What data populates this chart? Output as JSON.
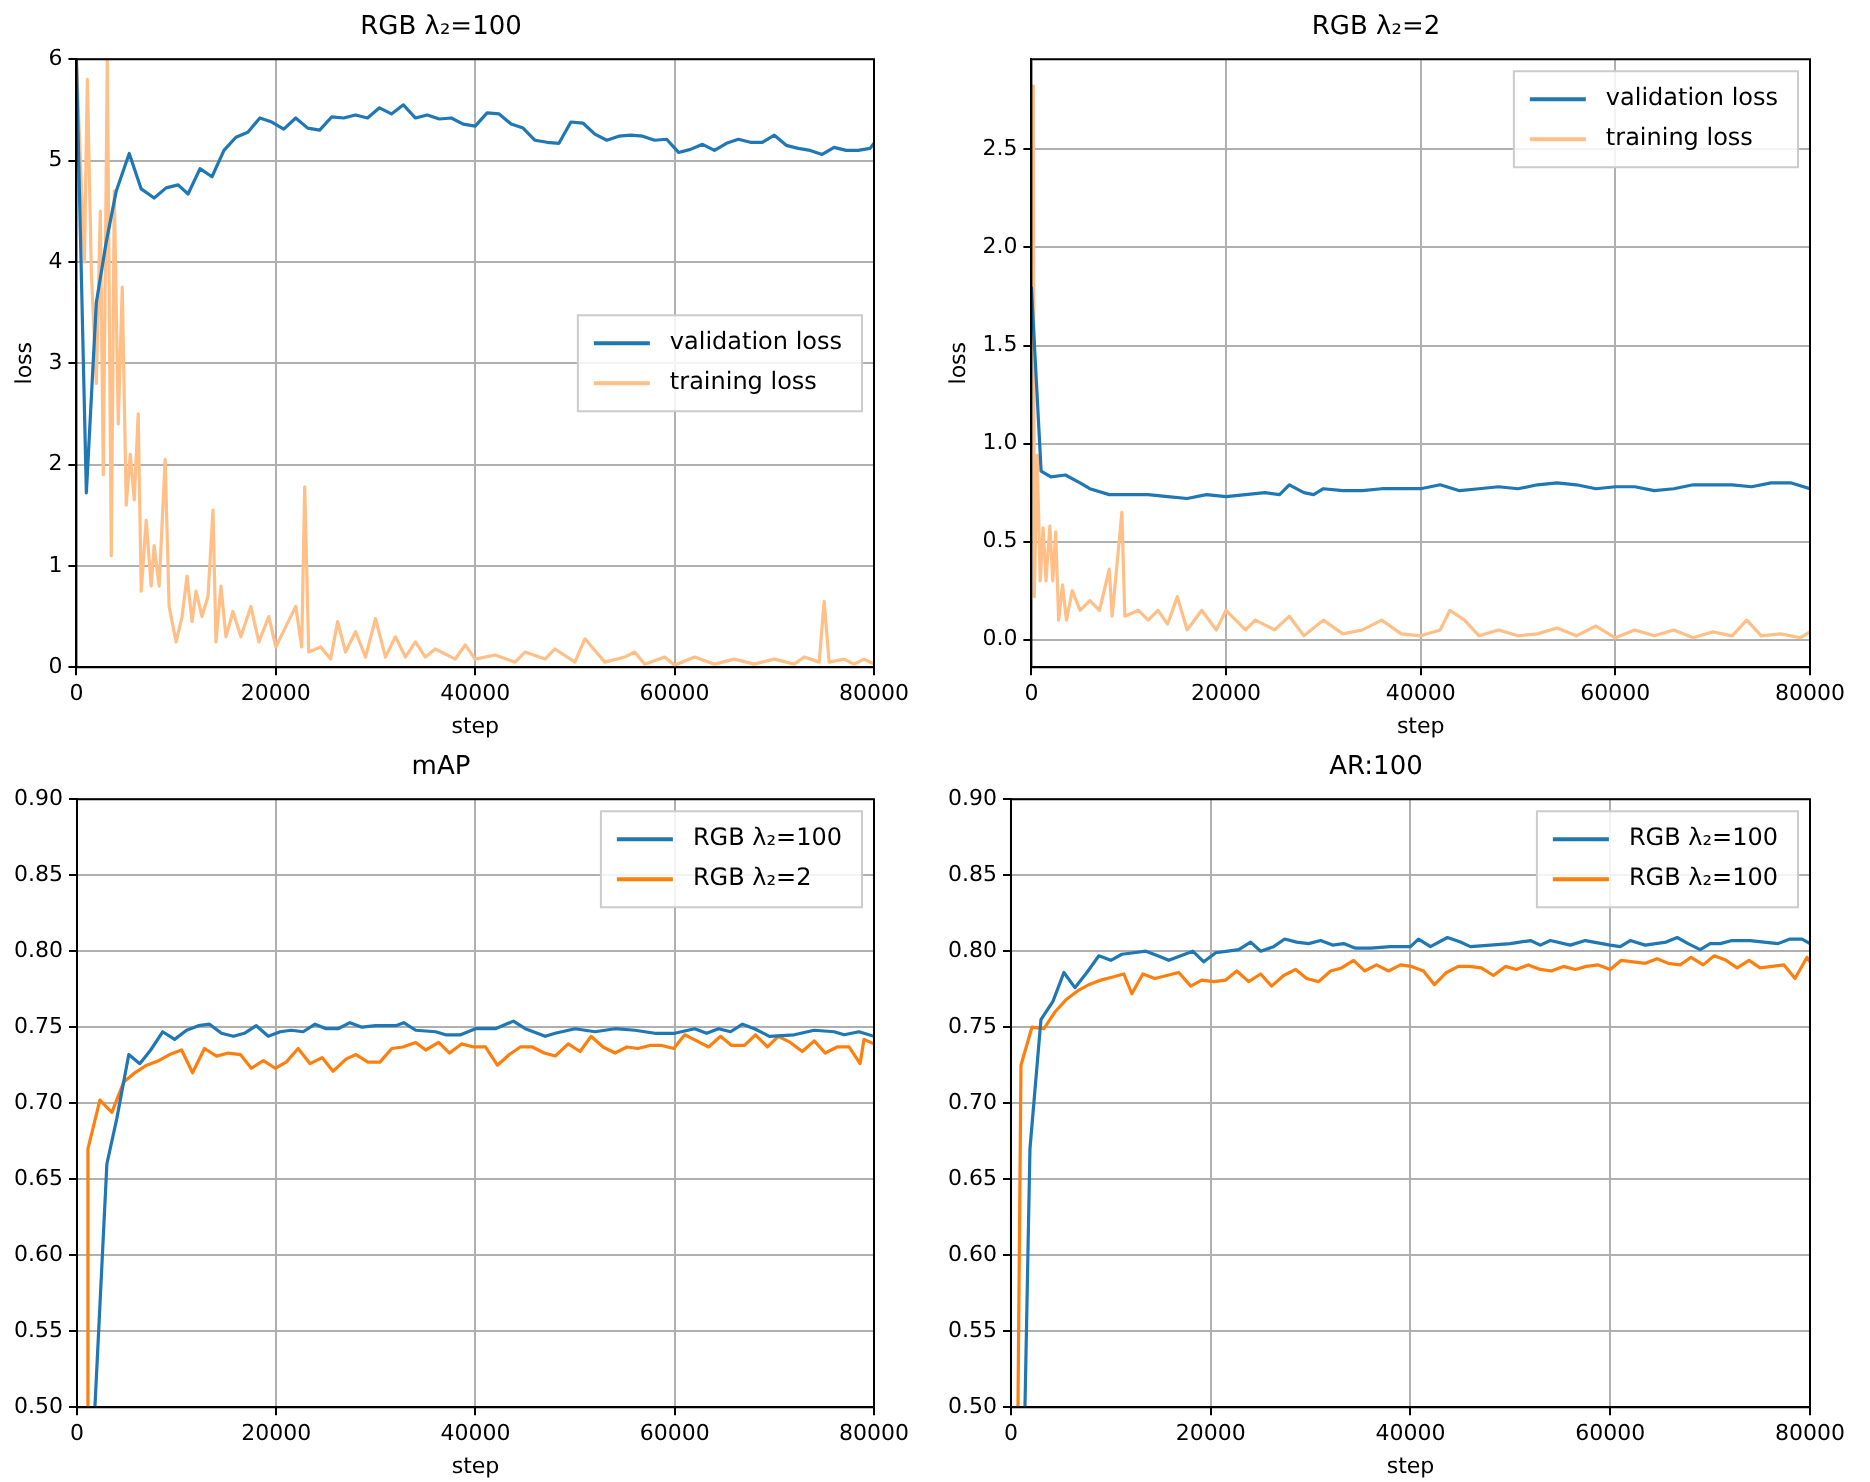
{
  "chart_data": [
    {
      "type": "line",
      "title": "RGB λ₂=100",
      "xlabel": "step",
      "ylabel": "loss",
      "xlim": [
        0,
        80000
      ],
      "xticks": [
        0,
        20000,
        40000,
        60000,
        80000
      ],
      "ylim": [
        0,
        6
      ],
      "yticks": [
        0,
        1,
        2,
        3,
        4,
        5,
        6
      ],
      "grid": true,
      "legend": "right",
      "marker": "none",
      "series": [
        {
          "name": "validation loss",
          "color": "#1f77b4",
          "x": [
            0,
            1000,
            2000,
            3000,
            4000,
            5300,
            6500,
            7800,
            9000,
            10200,
            11200,
            12400,
            13600,
            14800,
            16000,
            17200,
            18400,
            19600,
            20800,
            22000,
            23200,
            24400,
            25600,
            26800,
            28000,
            29200,
            30400,
            31600,
            32800,
            34000,
            35200,
            36400,
            37600,
            38800,
            40000,
            41200,
            42400,
            43600,
            44800,
            46000,
            47200,
            48400,
            49600,
            50800,
            52000,
            53200,
            54400,
            55600,
            56800,
            58000,
            59200,
            60400,
            61600,
            62800,
            64000,
            65200,
            66400,
            67600,
            68800,
            70000,
            71200,
            72400,
            73600,
            74800,
            76000,
            77200,
            78400,
            79600,
            80000
          ],
          "values": [
            6,
            1.72,
            3.6,
            4.2,
            4.7,
            5.07,
            4.72,
            4.63,
            4.73,
            4.76,
            4.67,
            4.92,
            4.84,
            5.1,
            5.23,
            5.28,
            5.42,
            5.38,
            5.31,
            5.42,
            5.32,
            5.3,
            5.43,
            5.42,
            5.45,
            5.42,
            5.52,
            5.46,
            5.55,
            5.42,
            5.45,
            5.41,
            5.42,
            5.36,
            5.34,
            5.47,
            5.46,
            5.36,
            5.32,
            5.2,
            5.18,
            5.17,
            5.38,
            5.37,
            5.26,
            5.2,
            5.24,
            5.25,
            5.24,
            5.2,
            5.21,
            5.08,
            5.11,
            5.16,
            5.1,
            5.17,
            5.21,
            5.18,
            5.18,
            5.25,
            5.15,
            5.12,
            5.1,
            5.06,
            5.13,
            5.1,
            5.1,
            5.12,
            5.17
          ]
        },
        {
          "name": "training loss",
          "color": "#ffbf86",
          "x": [
            0,
            800,
            1100,
            1500,
            2000,
            2400,
            2700,
            3100,
            3500,
            3800,
            4200,
            4600,
            5000,
            5400,
            5800,
            6200,
            6500,
            7000,
            7500,
            7800,
            8300,
            8900,
            9300,
            10000,
            10600,
            11100,
            11600,
            12000,
            12600,
            13200,
            13700,
            14000,
            14500,
            15000,
            15700,
            16500,
            17500,
            18300,
            19300,
            20000,
            21000,
            22000,
            22600,
            22900,
            23300,
            24500,
            25500,
            26200,
            27000,
            28000,
            29000,
            30000,
            31000,
            32000,
            33000,
            34000,
            35000,
            36000,
            38000,
            39000,
            40000,
            42000,
            44000,
            45000,
            47000,
            48000,
            50000,
            51000,
            53000,
            55000,
            56000,
            57000,
            59000,
            60000,
            62000,
            64000,
            66000,
            68000,
            70000,
            72000,
            73000,
            74500,
            75000,
            75500,
            77000,
            78000,
            79000,
            80000
          ],
          "values": [
            6,
            4.0,
            5.8,
            3.9,
            2.8,
            4.5,
            1.9,
            6,
            1.1,
            4.7,
            2.4,
            3.75,
            1.6,
            2.1,
            1.65,
            2.5,
            0.75,
            1.45,
            0.8,
            1.2,
            0.8,
            2.05,
            0.6,
            0.25,
            0.5,
            0.9,
            0.45,
            0.75,
            0.5,
            0.7,
            1.55,
            0.25,
            0.8,
            0.3,
            0.55,
            0.3,
            0.6,
            0.25,
            0.5,
            0.2,
            0.4,
            0.6,
            0.2,
            1.78,
            0.15,
            0.2,
            0.08,
            0.45,
            0.15,
            0.35,
            0.1,
            0.48,
            0.1,
            0.3,
            0.1,
            0.25,
            0.1,
            0.18,
            0.08,
            0.22,
            0.08,
            0.12,
            0.05,
            0.15,
            0.08,
            0.18,
            0.05,
            0.28,
            0.05,
            0.1,
            0.15,
            0.03,
            0.1,
            0.02,
            0.1,
            0.03,
            0.08,
            0.03,
            0.08,
            0.03,
            0.1,
            0.05,
            0.65,
            0.05,
            0.08,
            0.03,
            0.08,
            0.03
          ]
        }
      ]
    },
    {
      "type": "line",
      "title": "RGB λ₂=2",
      "xlabel": "step",
      "ylabel": "loss",
      "xlim": [
        0,
        80000
      ],
      "xticks": [
        0,
        20000,
        40000,
        60000,
        80000
      ],
      "ylim": [
        -0.14,
        2.96
      ],
      "yticks": [
        {
          "value": 0,
          "label": "0.0"
        },
        0.5,
        {
          "value": 1,
          "label": "1.0"
        },
        1.5,
        {
          "value": 2,
          "label": "2.0"
        },
        2.5
      ],
      "grid": true,
      "legend": "top right",
      "marker": "none",
      "series": [
        {
          "name": "validation loss",
          "color": "#1f77b4",
          "x": [
            0,
            1000,
            2000,
            3500,
            5000,
            6000,
            8000,
            10000,
            12000,
            14000,
            16000,
            18000,
            20000,
            22000,
            24000,
            25500,
            26500,
            28000,
            29000,
            30000,
            32000,
            34000,
            36000,
            38000,
            40000,
            42000,
            44000,
            46000,
            48000,
            50000,
            52000,
            54000,
            56000,
            58000,
            60000,
            62000,
            64000,
            66000,
            68000,
            70000,
            72000,
            74000,
            76000,
            78000,
            80000
          ],
          "values": [
            1.8,
            0.86,
            0.83,
            0.84,
            0.8,
            0.77,
            0.74,
            0.74,
            0.74,
            0.73,
            0.72,
            0.74,
            0.73,
            0.74,
            0.75,
            0.74,
            0.79,
            0.75,
            0.74,
            0.77,
            0.76,
            0.76,
            0.77,
            0.77,
            0.77,
            0.79,
            0.76,
            0.77,
            0.78,
            0.77,
            0.79,
            0.8,
            0.79,
            0.77,
            0.78,
            0.78,
            0.76,
            0.77,
            0.79,
            0.79,
            0.79,
            0.78,
            0.8,
            0.8,
            0.77
          ]
        },
        {
          "name": "training loss",
          "color": "#ffbf86",
          "x": [
            200,
            300,
            600,
            900,
            1200,
            1500,
            1900,
            2200,
            2500,
            2800,
            3200,
            3600,
            4200,
            5000,
            6000,
            7000,
            8000,
            8300,
            9300,
            9600,
            11000,
            12000,
            13000,
            14000,
            15000,
            16000,
            17500,
            19000,
            20000,
            22000,
            23000,
            25000,
            26500,
            28000,
            30000,
            32000,
            34000,
            36000,
            38000,
            40000,
            42000,
            43000,
            44500,
            46000,
            48000,
            50000,
            52000,
            54000,
            56000,
            58000,
            60000,
            62000,
            64000,
            66000,
            68000,
            70000,
            72000,
            73500,
            75000,
            77000,
            79000,
            80000
          ],
          "values": [
            2.83,
            0.22,
            0.94,
            0.3,
            0.57,
            0.3,
            0.58,
            0.3,
            0.55,
            0.1,
            0.28,
            0.1,
            0.25,
            0.15,
            0.2,
            0.15,
            0.36,
            0.12,
            0.65,
            0.12,
            0.15,
            0.1,
            0.15,
            0.08,
            0.22,
            0.05,
            0.15,
            0.05,
            0.15,
            0.05,
            0.1,
            0.05,
            0.12,
            0.02,
            0.1,
            0.03,
            0.05,
            0.1,
            0.03,
            0.02,
            0.05,
            0.15,
            0.1,
            0.02,
            0.05,
            0.02,
            0.03,
            0.06,
            0.02,
            0.07,
            0.01,
            0.05,
            0.02,
            0.05,
            0.01,
            0.04,
            0.02,
            0.1,
            0.02,
            0.03,
            0.01,
            0.04
          ]
        }
      ]
    },
    {
      "type": "line",
      "title": "mAP",
      "xlabel": "step",
      "xlim": [
        0,
        80000
      ],
      "xticks": [
        0,
        20000,
        40000,
        60000,
        80000
      ],
      "ylim": [
        0.5,
        0.9
      ],
      "yticks": [
        {
          "value": 0.5,
          "label": "0.50"
        },
        0.55,
        {
          "value": 0.6,
          "label": "0.60"
        },
        0.65,
        {
          "value": 0.7,
          "label": "0.70"
        },
        0.75,
        {
          "value": 0.8,
          "label": "0.80"
        },
        0.85,
        {
          "value": 0.9,
          "label": "0.90"
        }
      ],
      "grid": true,
      "legend": "top right",
      "marker": "none",
      "series": [
        {
          "name": "RGB λ₂=100",
          "color": "#1f77b4",
          "x": [
            1800,
            3000,
            4000,
            5200,
            6300,
            7400,
            8600,
            9800,
            11000,
            12200,
            13300,
            14500,
            15700,
            16800,
            18000,
            19200,
            20400,
            21500,
            22700,
            23900,
            25000,
            26200,
            27400,
            28600,
            30000,
            32000,
            32800,
            34000,
            36000,
            37000,
            38500,
            40000,
            42000,
            43800,
            45000,
            47000,
            48000,
            50000,
            52000,
            54000,
            56000,
            58000,
            60000,
            62000,
            63200,
            64400,
            65600,
            66800,
            68000,
            69500,
            72000,
            74000,
            76000,
            77000,
            78500,
            80000
          ],
          "values": [
            0.5,
            0.66,
            0.69,
            0.732,
            0.726,
            0.735,
            0.747,
            0.742,
            0.748,
            0.751,
            0.752,
            0.746,
            0.744,
            0.746,
            0.751,
            0.744,
            0.747,
            0.748,
            0.747,
            0.752,
            0.749,
            0.749,
            0.753,
            0.75,
            0.751,
            0.751,
            0.753,
            0.748,
            0.747,
            0.745,
            0.745,
            0.749,
            0.749,
            0.754,
            0.749,
            0.744,
            0.746,
            0.749,
            0.747,
            0.749,
            0.748,
            0.746,
            0.746,
            0.749,
            0.746,
            0.749,
            0.747,
            0.752,
            0.749,
            0.744,
            0.745,
            0.748,
            0.747,
            0.745,
            0.747,
            0.744
          ]
        },
        {
          "name": "RGB λ₂=2",
          "color": "#ff7f0e",
          "x": [
            1000,
            1100,
            2300,
            3500,
            4700,
            5800,
            7000,
            8200,
            9300,
            10500,
            11600,
            12800,
            14000,
            15200,
            16400,
            17500,
            18700,
            19900,
            21000,
            22200,
            23400,
            24600,
            25700,
            27000,
            28000,
            29200,
            30400,
            31600,
            32700,
            34000,
            35000,
            36300,
            37400,
            38600,
            39800,
            41000,
            42200,
            43400,
            44500,
            45700,
            46900,
            48000,
            49300,
            50500,
            51600,
            52800,
            54000,
            55200,
            56300,
            57500,
            58700,
            59900,
            61000,
            62200,
            63400,
            64600,
            65700,
            67000,
            68100,
            69300,
            70400,
            71600,
            72800,
            74000,
            75100,
            76300,
            77500,
            78600,
            79000,
            80000
          ],
          "values": [
            0.5,
            0.67,
            0.702,
            0.694,
            0.714,
            0.72,
            0.725,
            0.728,
            0.732,
            0.735,
            0.72,
            0.736,
            0.731,
            0.733,
            0.732,
            0.723,
            0.728,
            0.723,
            0.727,
            0.736,
            0.726,
            0.73,
            0.721,
            0.729,
            0.732,
            0.727,
            0.727,
            0.736,
            0.737,
            0.74,
            0.735,
            0.74,
            0.733,
            0.739,
            0.737,
            0.737,
            0.725,
            0.732,
            0.737,
            0.737,
            0.733,
            0.731,
            0.739,
            0.734,
            0.744,
            0.737,
            0.733,
            0.737,
            0.736,
            0.738,
            0.738,
            0.736,
            0.745,
            0.741,
            0.737,
            0.744,
            0.738,
            0.738,
            0.745,
            0.737,
            0.744,
            0.74,
            0.734,
            0.741,
            0.733,
            0.737,
            0.737,
            0.726,
            0.742,
            0.739
          ]
        }
      ]
    },
    {
      "type": "line",
      "title": "AR:100",
      "xlabel": "step",
      "xlim": [
        0,
        80000
      ],
      "xticks": [
        0,
        20000,
        40000,
        60000,
        80000
      ],
      "ylim": [
        0.5,
        0.9
      ],
      "yticks": [
        {
          "value": 0.5,
          "label": "0.50"
        },
        0.55,
        {
          "value": 0.6,
          "label": "0.60"
        },
        0.65,
        {
          "value": 0.7,
          "label": "0.70"
        },
        0.75,
        {
          "value": 0.8,
          "label": "0.80"
        },
        0.85,
        {
          "value": 0.9,
          "label": "0.90"
        }
      ],
      "grid": true,
      "legend": "top right",
      "marker": "none",
      "series": [
        {
          "name": "RGB λ₂=100",
          "color": "#1f77b4",
          "x": [
            1400,
            1900,
            3000,
            4200,
            5300,
            6400,
            7600,
            8800,
            10000,
            11100,
            12300,
            13500,
            14700,
            15800,
            17000,
            18200,
            19300,
            20500,
            21700,
            22800,
            24000,
            25000,
            26300,
            27400,
            28600,
            29800,
            31000,
            32200,
            33300,
            34500,
            36000,
            38000,
            40000,
            40800,
            42000,
            43700,
            45000,
            46000,
            48000,
            50000,
            52000,
            53000,
            54000,
            56000,
            57500,
            60000,
            61000,
            62000,
            63500,
            65600,
            66700,
            67800,
            69000,
            70000,
            71000,
            72200,
            74000,
            75400,
            76800,
            78000,
            79200,
            80000
          ],
          "values": [
            0.5,
            0.67,
            0.755,
            0.767,
            0.786,
            0.776,
            0.786,
            0.797,
            0.794,
            0.798,
            0.799,
            0.8,
            0.797,
            0.794,
            0.797,
            0.8,
            0.793,
            0.799,
            0.8,
            0.801,
            0.806,
            0.8,
            0.803,
            0.808,
            0.806,
            0.805,
            0.807,
            0.804,
            0.805,
            0.802,
            0.802,
            0.803,
            0.803,
            0.808,
            0.803,
            0.809,
            0.806,
            0.803,
            0.804,
            0.805,
            0.807,
            0.804,
            0.807,
            0.804,
            0.807,
            0.804,
            0.803,
            0.807,
            0.804,
            0.806,
            0.809,
            0.805,
            0.801,
            0.805,
            0.805,
            0.807,
            0.807,
            0.806,
            0.805,
            0.808,
            0.808,
            0.805
          ]
        },
        {
          "name": "RGB λ₂=100",
          "color": "#ff7f0e",
          "x": [
            700,
            1000,
            2100,
            3300,
            4400,
            5500,
            6700,
            7800,
            9000,
            10200,
            11300,
            12100,
            13200,
            14400,
            15600,
            16800,
            18000,
            19100,
            20300,
            21500,
            22600,
            23800,
            25000,
            26100,
            27300,
            28500,
            29600,
            30800,
            32000,
            33100,
            34300,
            35400,
            36600,
            37800,
            39000,
            40100,
            41300,
            42400,
            43600,
            44800,
            45900,
            47100,
            48300,
            49500,
            50600,
            51800,
            53000,
            54100,
            55300,
            56500,
            57600,
            58800,
            60000,
            61100,
            62300,
            63500,
            64700,
            65800,
            67000,
            68100,
            69300,
            70400,
            71600,
            72700,
            73900,
            75000,
            76200,
            77400,
            78500,
            79700,
            80000
          ],
          "values": [
            0.5,
            0.725,
            0.75,
            0.749,
            0.76,
            0.768,
            0.774,
            0.778,
            0.781,
            0.783,
            0.785,
            0.772,
            0.785,
            0.782,
            0.784,
            0.786,
            0.777,
            0.781,
            0.78,
            0.781,
            0.787,
            0.78,
            0.785,
            0.777,
            0.784,
            0.788,
            0.782,
            0.78,
            0.787,
            0.789,
            0.794,
            0.787,
            0.791,
            0.787,
            0.791,
            0.79,
            0.787,
            0.778,
            0.786,
            0.79,
            0.79,
            0.789,
            0.784,
            0.79,
            0.788,
            0.791,
            0.788,
            0.787,
            0.79,
            0.788,
            0.79,
            0.791,
            0.788,
            0.794,
            0.793,
            0.792,
            0.795,
            0.792,
            0.791,
            0.796,
            0.791,
            0.797,
            0.794,
            0.789,
            0.794,
            0.789,
            0.79,
            0.791,
            0.782,
            0.796,
            0.793
          ]
        }
      ]
    }
  ]
}
